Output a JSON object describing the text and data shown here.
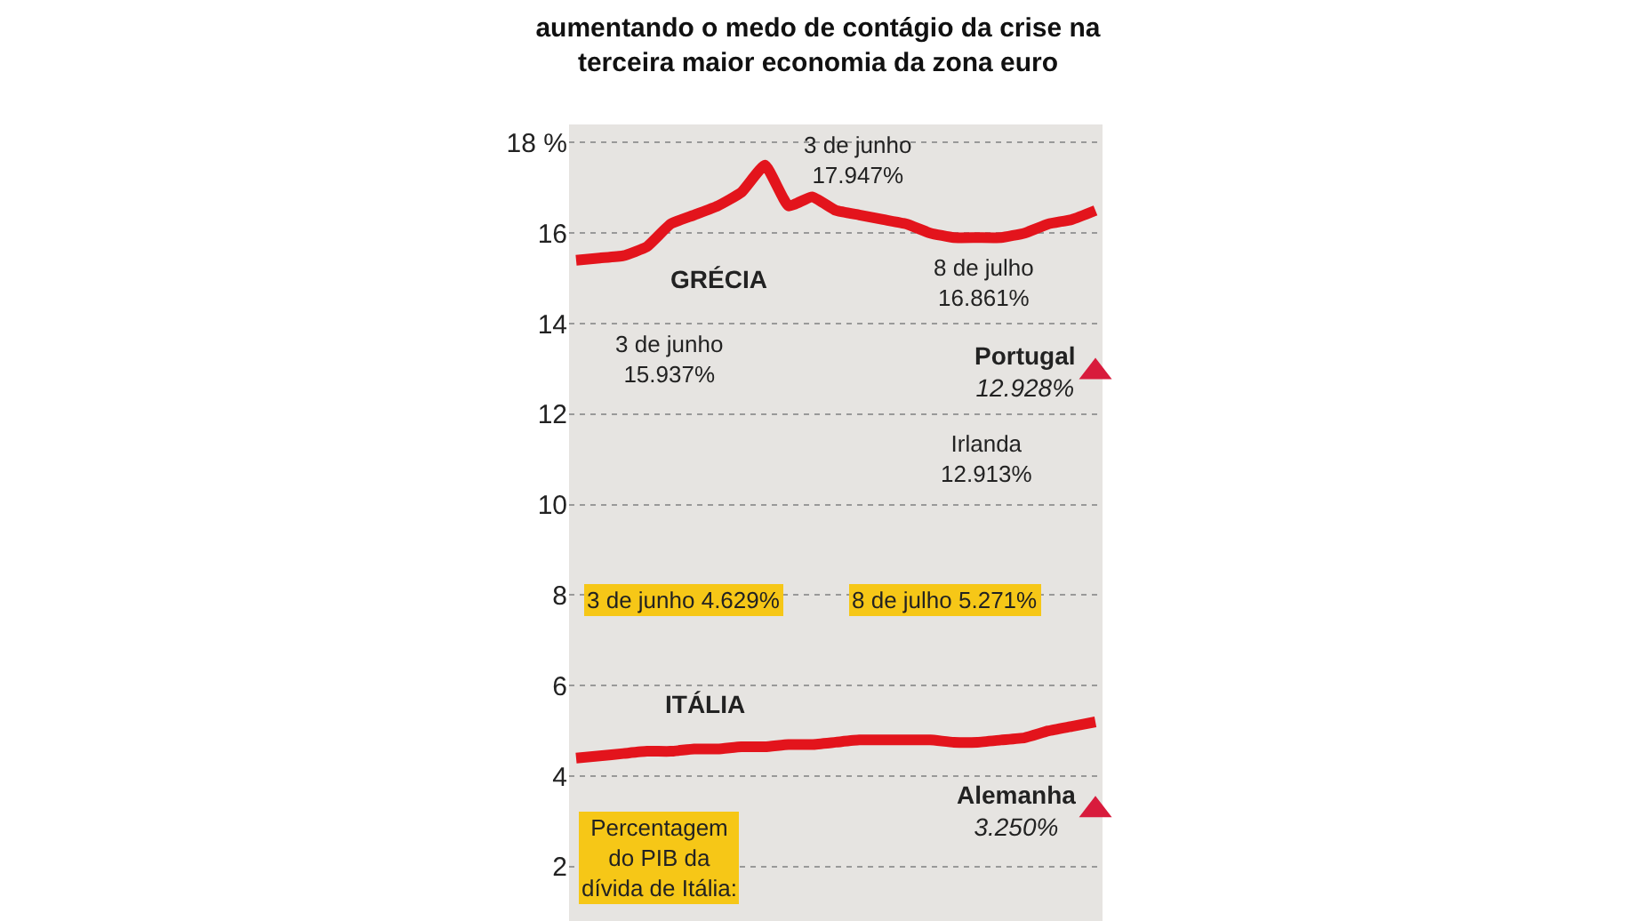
{
  "chart_data": {
    "type": "line",
    "title": "aumentando o medo de contágio da crise na\nterceira maior economia da zona euro",
    "categories": [
      null,
      null,
      null,
      null,
      null,
      null,
      null,
      null,
      null,
      null,
      null,
      null,
      null,
      null,
      null,
      null,
      null,
      null,
      null,
      null,
      null,
      null,
      null
    ],
    "series": [
      {
        "name": "GRÉCIA",
        "color": "#e3141c",
        "values": [
          15.4,
          15.45,
          15.5,
          15.7,
          16.2,
          16.4,
          16.6,
          16.9,
          17.5,
          16.6,
          16.8,
          16.5,
          16.4,
          16.3,
          16.2,
          16.0,
          15.9,
          15.9,
          15.9,
          16.0,
          16.2,
          16.3,
          16.5
        ]
      },
      {
        "name": "ITÁLIA",
        "color": "#e3141c",
        "values": [
          4.4,
          4.45,
          4.5,
          4.55,
          4.55,
          4.6,
          4.6,
          4.65,
          4.65,
          4.7,
          4.7,
          4.75,
          4.8,
          4.8,
          4.8,
          4.8,
          4.75,
          4.75,
          4.8,
          4.85,
          5.0,
          5.1,
          5.2
        ]
      },
      {
        "name": "Portugal",
        "type": "scatter",
        "marker": "triangle",
        "color": "#d81b3c",
        "values": [
          null,
          null,
          null,
          null,
          null,
          null,
          null,
          null,
          null,
          null,
          null,
          null,
          null,
          null,
          null,
          null,
          null,
          null,
          null,
          null,
          null,
          null,
          12.928
        ],
        "value_labels": [
          null,
          null,
          null,
          null,
          null,
          null,
          null,
          null,
          null,
          null,
          null,
          null,
          null,
          null,
          null,
          null,
          null,
          null,
          null,
          null,
          null,
          null,
          "12.928%"
        ]
      },
      {
        "name": "Alemanha",
        "type": "scatter",
        "marker": "triangle",
        "color": "#d81b3c",
        "values": [
          null,
          null,
          null,
          null,
          null,
          null,
          null,
          null,
          null,
          null,
          null,
          null,
          null,
          null,
          null,
          null,
          null,
          null,
          null,
          null,
          null,
          null,
          3.25
        ],
        "value_labels": [
          null,
          null,
          null,
          null,
          null,
          null,
          null,
          null,
          null,
          null,
          null,
          null,
          null,
          null,
          null,
          null,
          null,
          null,
          null,
          null,
          null,
          null,
          "3.250%"
        ]
      }
    ],
    "ylim": [
      0.8,
      18.4
    ],
    "yticks": [
      2,
      4,
      6,
      8,
      10,
      12,
      14,
      16,
      {
        "value": 18,
        "label": "18 %"
      }
    ],
    "grid": "y",
    "tick_labels": "y",
    "legend": false,
    "annotations": [
      "3 de junho\n17.947%",
      "3 de junho\n15.937%",
      "8 de julho\n16.861%",
      "Irlanda\n12.913%",
      "3 de junho 4.629%",
      "8 de julho 5.271%",
      {
        "text": "Percentagem\ndo PIB da\ndívida de Itália:"
      }
    ]
  }
}
